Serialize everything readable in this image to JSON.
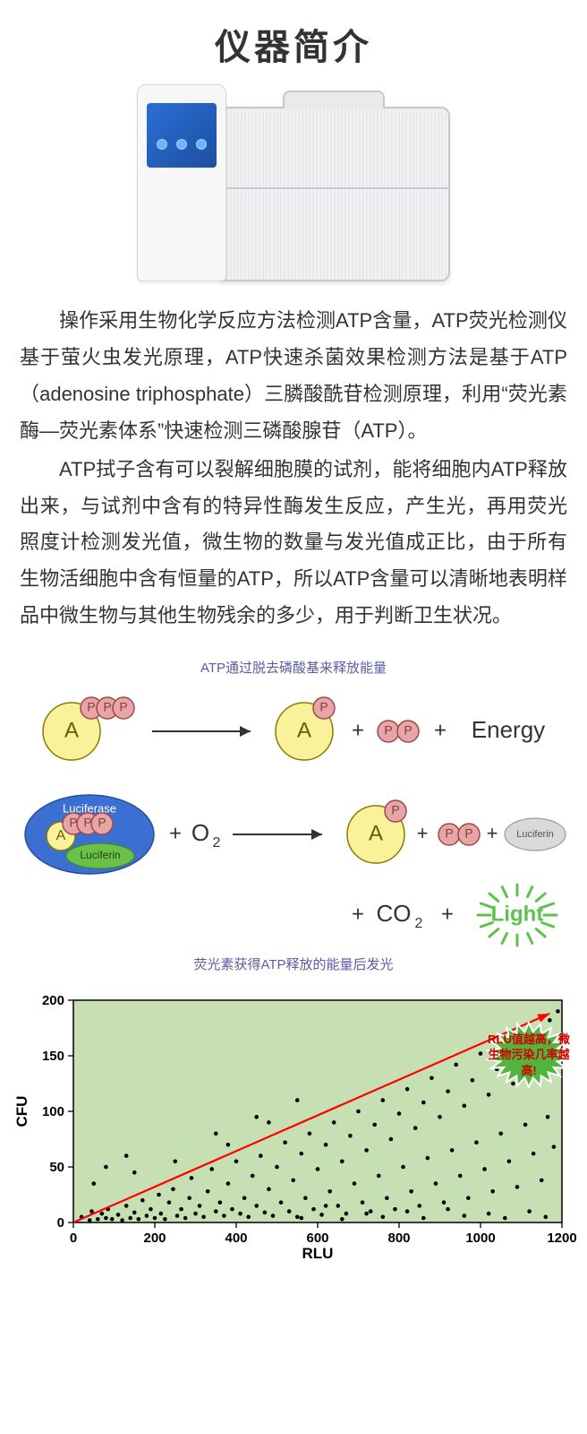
{
  "title": "仪器简介",
  "paragraphs": {
    "p1": "操作采用生物化学反应方法检测ATP含量，ATP荧光检测仪基于萤火虫发光原理，ATP快速杀菌效果检测方法是基于ATP（adenosine triphosphate）三膦酸酰苷检测原理，利用“荧光素酶—荧光素体系”快速检测三磷酸腺苷（ATP）。",
    "p2": "ATP拭子含有可以裂解细胞膜的试剂，能将细胞内ATP释放出来，与试剂中含有的特异性酶发生反应，产生光，再用荧光照度计检测发光值，微生物的数量与发光值成正比，由于所有生物活细胞中含有恒量的ATP，所以ATP含量可以清晰地表明样品中微生物与其他生物残余的多少，用于判断卫生状况。"
  },
  "reaction": {
    "caption_top": "ATP通过脱去磷酸基来释放能量",
    "caption_bottom": "荧光素获得ATP释放的能量后发光",
    "labels": {
      "A": "A",
      "P": "P",
      "plus": "+",
      "energy": "Energy",
      "luciferase": "Luciferase",
      "luciferin": "Luciferin",
      "o2_O": "O",
      "o2_2": "2",
      "co2_CO": "CO",
      "co2_2": "2",
      "light": "Light"
    },
    "colors": {
      "adenosine_fill": "#faf29a",
      "adenosine_stroke": "#8a7a00",
      "phosphate_fill": "#e7a6a6",
      "phosphate_stroke": "#a04848",
      "luciferase_fill": "#3b6fd1",
      "luciferase_stroke": "#27509c",
      "luciferin_fill": "#6cc04a",
      "luciferin_stroke": "#3e8a22",
      "product_grey_fill": "#d9d9d9",
      "product_grey_stroke": "#9a9a9a",
      "arrow": "#333333",
      "text": "#333333",
      "light_color": "#5fc24e"
    }
  },
  "scatter": {
    "xlabel": "RLU",
    "ylabel": "CFU",
    "xlim": [
      0,
      1200
    ],
    "ylim": [
      0,
      200
    ],
    "xticks": [
      0,
      200,
      400,
      600,
      800,
      1000,
      1200
    ],
    "yticks": [
      0,
      50,
      100,
      150,
      200
    ],
    "background_color": "#c6e0b4",
    "axis_color": "#000000",
    "point_color": "#000000",
    "trend_color": "#ff0000",
    "trend_start": [
      0,
      0
    ],
    "trend_end": [
      1170,
      188
    ],
    "axis_fontsize": 15,
    "label_fontsize": 17,
    "badge_text": "RLU值越高，微生物污染几率越高!",
    "badge_fill": "#52b43c",
    "badge_text_color": "#d40000",
    "points": [
      [
        20,
        5
      ],
      [
        40,
        2
      ],
      [
        45,
        10
      ],
      [
        60,
        3
      ],
      [
        70,
        8
      ],
      [
        80,
        4
      ],
      [
        85,
        12
      ],
      [
        95,
        3
      ],
      [
        110,
        7
      ],
      [
        120,
        2
      ],
      [
        130,
        15
      ],
      [
        140,
        4
      ],
      [
        150,
        9
      ],
      [
        160,
        3
      ],
      [
        170,
        20
      ],
      [
        180,
        6
      ],
      [
        190,
        12
      ],
      [
        200,
        4
      ],
      [
        210,
        25
      ],
      [
        215,
        8
      ],
      [
        225,
        3
      ],
      [
        235,
        18
      ],
      [
        245,
        30
      ],
      [
        255,
        6
      ],
      [
        265,
        12
      ],
      [
        275,
        4
      ],
      [
        285,
        22
      ],
      [
        290,
        40
      ],
      [
        300,
        8
      ],
      [
        310,
        15
      ],
      [
        320,
        5
      ],
      [
        330,
        28
      ],
      [
        340,
        48
      ],
      [
        350,
        10
      ],
      [
        360,
        18
      ],
      [
        370,
        6
      ],
      [
        380,
        35
      ],
      [
        390,
        12
      ],
      [
        400,
        55
      ],
      [
        410,
        8
      ],
      [
        420,
        22
      ],
      [
        430,
        5
      ],
      [
        440,
        42
      ],
      [
        450,
        15
      ],
      [
        460,
        60
      ],
      [
        470,
        9
      ],
      [
        480,
        30
      ],
      [
        490,
        6
      ],
      [
        500,
        50
      ],
      [
        510,
        18
      ],
      [
        520,
        72
      ],
      [
        530,
        10
      ],
      [
        540,
        38
      ],
      [
        550,
        5
      ],
      [
        560,
        62
      ],
      [
        570,
        22
      ],
      [
        580,
        80
      ],
      [
        590,
        12
      ],
      [
        600,
        48
      ],
      [
        610,
        7
      ],
      [
        620,
        70
      ],
      [
        630,
        28
      ],
      [
        640,
        90
      ],
      [
        650,
        15
      ],
      [
        660,
        55
      ],
      [
        670,
        8
      ],
      [
        680,
        78
      ],
      [
        690,
        35
      ],
      [
        700,
        100
      ],
      [
        710,
        18
      ],
      [
        720,
        65
      ],
      [
        730,
        10
      ],
      [
        740,
        88
      ],
      [
        750,
        42
      ],
      [
        760,
        110
      ],
      [
        770,
        22
      ],
      [
        780,
        75
      ],
      [
        790,
        12
      ],
      [
        800,
        98
      ],
      [
        810,
        50
      ],
      [
        820,
        120
      ],
      [
        830,
        28
      ],
      [
        840,
        85
      ],
      [
        850,
        15
      ],
      [
        860,
        108
      ],
      [
        870,
        58
      ],
      [
        880,
        130
      ],
      [
        890,
        35
      ],
      [
        900,
        95
      ],
      [
        910,
        18
      ],
      [
        920,
        118
      ],
      [
        930,
        65
      ],
      [
        940,
        142
      ],
      [
        950,
        42
      ],
      [
        960,
        105
      ],
      [
        970,
        22
      ],
      [
        980,
        128
      ],
      [
        990,
        72
      ],
      [
        1000,
        152
      ],
      [
        1010,
        48
      ],
      [
        1020,
        115
      ],
      [
        1030,
        28
      ],
      [
        1040,
        138
      ],
      [
        1050,
        80
      ],
      [
        1060,
        162
      ],
      [
        1070,
        55
      ],
      [
        1080,
        125
      ],
      [
        1090,
        32
      ],
      [
        1100,
        148
      ],
      [
        1110,
        88
      ],
      [
        1120,
        172
      ],
      [
        1130,
        62
      ],
      [
        1140,
        135
      ],
      [
        1150,
        38
      ],
      [
        1160,
        158
      ],
      [
        1165,
        95
      ],
      [
        1170,
        182
      ],
      [
        1180,
        68
      ],
      [
        1185,
        145
      ],
      [
        1190,
        190
      ],
      [
        50,
        35
      ],
      [
        150,
        45
      ],
      [
        250,
        55
      ],
      [
        130,
        60
      ],
      [
        80,
        50
      ],
      [
        380,
        70
      ],
      [
        480,
        90
      ],
      [
        620,
        15
      ],
      [
        720,
        8
      ],
      [
        820,
        10
      ],
      [
        920,
        12
      ],
      [
        1020,
        8
      ],
      [
        1120,
        10
      ],
      [
        560,
        4
      ],
      [
        660,
        3
      ],
      [
        760,
        5
      ],
      [
        860,
        4
      ],
      [
        960,
        6
      ],
      [
        1060,
        4
      ],
      [
        1160,
        5
      ],
      [
        350,
        80
      ],
      [
        450,
        95
      ],
      [
        550,
        110
      ]
    ]
  }
}
